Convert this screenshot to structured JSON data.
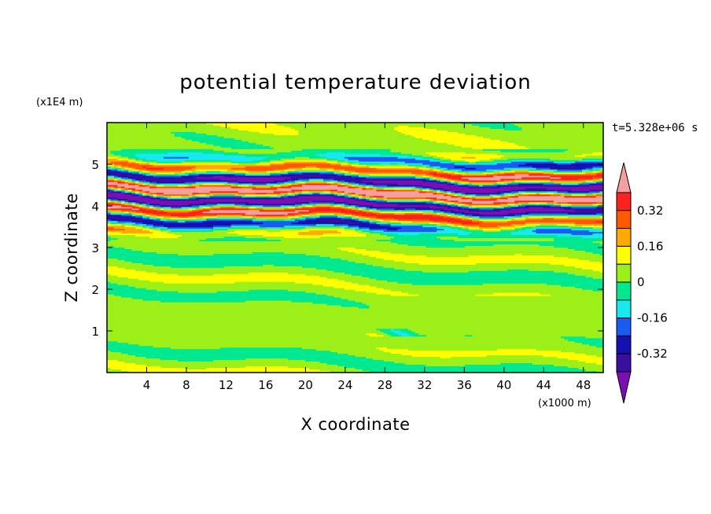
{
  "chart_data": {
    "type": "heatmap",
    "subtype": "filled-contour",
    "title": "potential temperature deviation",
    "time_label": "t=5.328e+06 s",
    "xlabel": "X coordinate",
    "ylabel": "Z coordinate",
    "x_unit": "(x1000 m)",
    "y_unit": "(x1E4 m)",
    "xlim": [
      0,
      50
    ],
    "ylim": [
      0,
      6
    ],
    "x_ticks": [
      4,
      8,
      12,
      16,
      20,
      24,
      28,
      32,
      36,
      40,
      44,
      48
    ],
    "y_ticks": [
      1,
      2,
      3,
      4,
      5
    ],
    "colorbar": {
      "labels": [
        "0.32",
        "0.16",
        "0",
        "-0.16",
        "-0.32"
      ],
      "label_values": [
        0.32,
        0.16,
        0,
        -0.16,
        -0.32
      ],
      "levels": [
        -0.4,
        -0.32,
        -0.24,
        -0.16,
        -0.08,
        0,
        0.08,
        0.16,
        0.24,
        0.32,
        0.4
      ],
      "colors": [
        "#7a0fb4",
        "#3a0fa0",
        "#1610b0",
        "#1a5cf0",
        "#18e8f0",
        "#00e890",
        "#9cf018",
        "#ffff00",
        "#ffaa00",
        "#ff5a00",
        "#ff2020",
        "#f5a0a0"
      ],
      "extend": "both"
    },
    "bands": [
      {
        "description": "near-neutral deviations with weak blobs",
        "z_range": [
          0,
          3.2
        ],
        "dominant_values": [
          -0.08,
          0.08
        ]
      },
      {
        "description": "alternating strong positive and negative layers",
        "z_range": [
          3.2,
          5.3
        ],
        "dominant_values": [
          -0.4,
          0.4
        ]
      },
      {
        "description": "near-neutral upper region",
        "z_range": [
          5.3,
          6
        ],
        "dominant_values": [
          -0.08,
          0.08
        ]
      }
    ],
    "legend": "right"
  }
}
